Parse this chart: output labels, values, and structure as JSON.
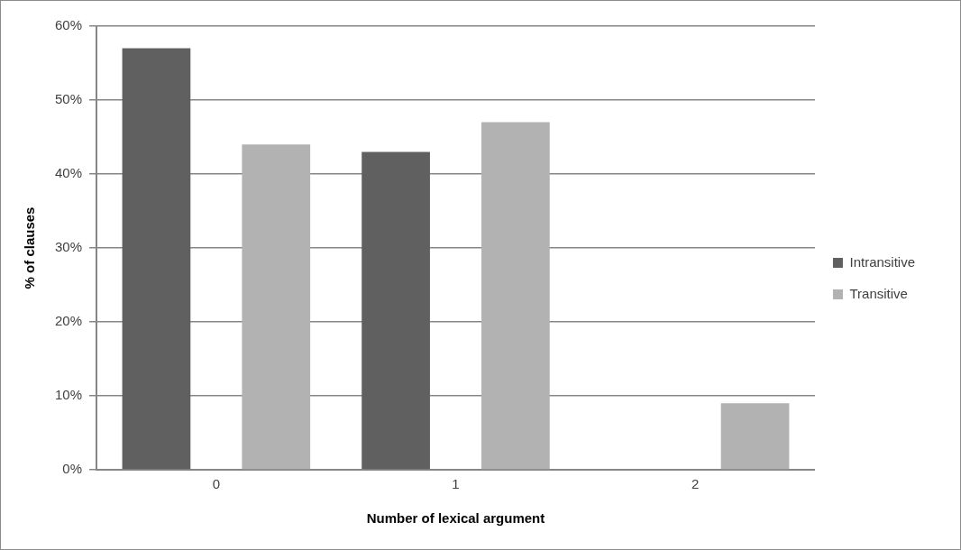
{
  "chart_data": {
    "type": "bar",
    "xlabel": "Number of lexical argument",
    "ylabel": "% of clauses",
    "categories": [
      "0",
      "1",
      "2"
    ],
    "series": [
      {
        "name": "Intransitive",
        "color": "#606060",
        "values": [
          57,
          43,
          0
        ]
      },
      {
        "name": "Transitive",
        "color": "#b2b2b2",
        "values": [
          44,
          47,
          9
        ]
      }
    ],
    "ylim": [
      0,
      60
    ],
    "yticks": [
      {
        "value": 0,
        "label": "0%"
      },
      {
        "value": 10,
        "label": "10%"
      },
      {
        "value": 20,
        "label": "20%"
      },
      {
        "value": 30,
        "label": "30%"
      },
      {
        "value": 40,
        "label": "40%"
      },
      {
        "value": 50,
        "label": "50%"
      },
      {
        "value": 60,
        "label": "60%"
      }
    ],
    "grid": "y",
    "legend": "right"
  }
}
